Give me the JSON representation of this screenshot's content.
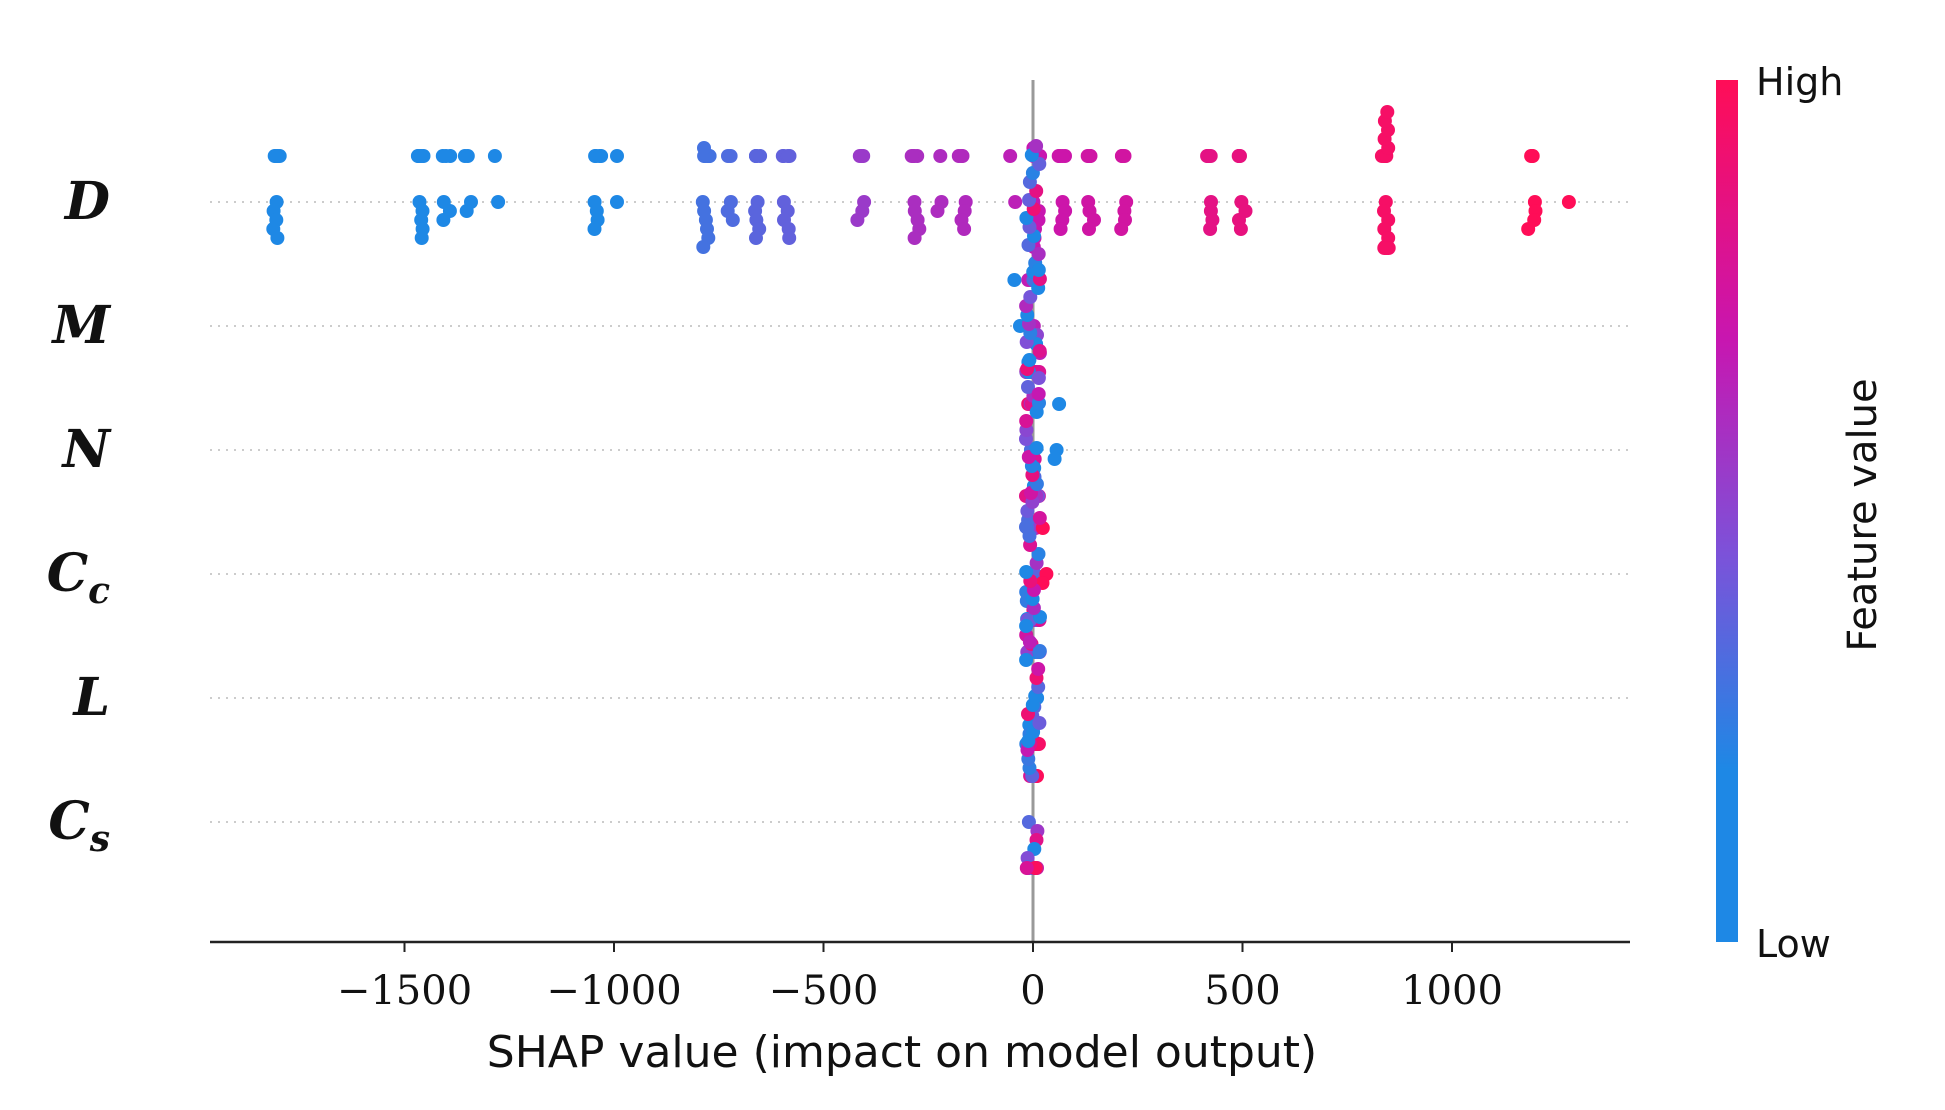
{
  "chart_data": {
    "type": "scatter",
    "subtype": "shap-beeswarm",
    "xlabel": "SHAP value (impact on model output)",
    "xlim": [
      -1950,
      1430
    ],
    "xticks": [
      -1500,
      -1000,
      -500,
      0,
      500,
      1000
    ],
    "xtick_labels": [
      "−1500",
      "−1000",
      "−500",
      "0",
      "500",
      "1000"
    ],
    "features": [
      {
        "name": "D",
        "sub": ""
      },
      {
        "name": "M",
        "sub": ""
      },
      {
        "name": "N",
        "sub": ""
      },
      {
        "name": "C",
        "sub": "c"
      },
      {
        "name": "L",
        "sub": ""
      },
      {
        "name": "C",
        "sub": "s"
      }
    ],
    "clusters": [
      {
        "feature": 0,
        "x": -1805,
        "count": 10,
        "value": 0.0
      },
      {
        "feature": 0,
        "x": -1460,
        "count": 10,
        "value": 0.05
      },
      {
        "feature": 0,
        "x": -1400,
        "count": 6,
        "value": 0.07
      },
      {
        "feature": 0,
        "x": -1350,
        "count": 4,
        "value": 0.08
      },
      {
        "feature": 0,
        "x": -1280,
        "count": 2,
        "value": 0.1
      },
      {
        "feature": 0,
        "x": -1040,
        "count": 8,
        "value": 0.16
      },
      {
        "feature": 0,
        "x": -990,
        "count": 2,
        "value": 0.18
      },
      {
        "feature": 0,
        "x": -780,
        "count": 12,
        "value": 0.3
      },
      {
        "feature": 0,
        "x": -720,
        "count": 5,
        "value": 0.33
      },
      {
        "feature": 0,
        "x": -660,
        "count": 9,
        "value": 0.36
      },
      {
        "feature": 0,
        "x": -590,
        "count": 9,
        "value": 0.38
      },
      {
        "feature": 0,
        "x": -410,
        "count": 6,
        "value": 0.55
      },
      {
        "feature": 0,
        "x": -280,
        "count": 9,
        "value": 0.6
      },
      {
        "feature": 0,
        "x": -220,
        "count": 3,
        "value": 0.61
      },
      {
        "feature": 0,
        "x": -170,
        "count": 7,
        "value": 0.62
      },
      {
        "feature": 0,
        "x": -50,
        "count": 2,
        "value": 0.66
      },
      {
        "feature": 0,
        "x": 10,
        "count": 12,
        "value": 0.7
      },
      {
        "feature": 0,
        "x": 70,
        "count": 8,
        "value": 0.72
      },
      {
        "feature": 0,
        "x": 140,
        "count": 8,
        "value": 0.74
      },
      {
        "feature": 0,
        "x": 220,
        "count": 7,
        "value": 0.75
      },
      {
        "feature": 0,
        "x": 420,
        "count": 8,
        "value": 0.85
      },
      {
        "feature": 0,
        "x": 500,
        "count": 8,
        "value": 0.87
      },
      {
        "feature": 0,
        "x": 840,
        "count": 20,
        "value": 0.95
      },
      {
        "feature": 0,
        "x": 1190,
        "count": 7,
        "value": 1.0
      },
      {
        "feature": 0,
        "x": 1270,
        "count": 1,
        "value": 1.0
      },
      {
        "feature": 1,
        "x": 0,
        "count": 40,
        "value": "mixed"
      },
      {
        "feature": 1,
        "x": -40,
        "count": 2,
        "value": 0.1
      },
      {
        "feature": 2,
        "x": 0,
        "count": 40,
        "value": "mixed"
      },
      {
        "feature": 2,
        "x": 60,
        "count": 3,
        "value": 0.05
      },
      {
        "feature": 3,
        "x": 0,
        "count": 40,
        "value": "mixed"
      },
      {
        "feature": 3,
        "x": 25,
        "count": 3,
        "value": 1.0
      },
      {
        "feature": 4,
        "x": 0,
        "count": 40,
        "value": "mixed"
      },
      {
        "feature": 5,
        "x": 0,
        "count": 40,
        "value": "mixed"
      }
    ],
    "colorbar": {
      "label": "Feature value",
      "high_label": "High",
      "low_label": "Low",
      "low_color": "#1e88e5",
      "mid_color": "#7c52d9",
      "high_color": "#ff0d57"
    },
    "grid": false
  }
}
